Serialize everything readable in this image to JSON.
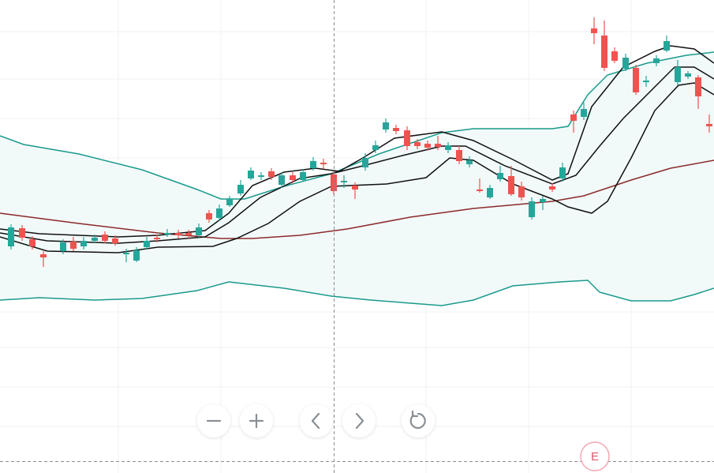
{
  "earnings_marker": {
    "label": "E"
  }
}
